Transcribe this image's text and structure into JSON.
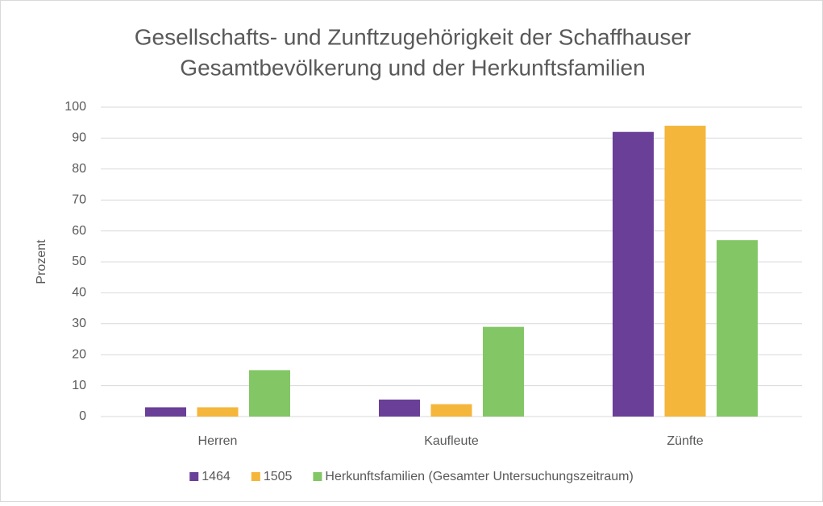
{
  "chart_data": {
    "type": "bar",
    "title": [
      "Gesellschafts- und Zunftzugehörigkeit der Schaffhauser",
      "Gesamtbevölkerung und der Herkunftsfamilien"
    ],
    "y_label": "Prozent",
    "categories": [
      "Herren",
      "Kaufleute",
      "Zünfte"
    ],
    "series": [
      {
        "name": "1464",
        "color": "#6a3f98",
        "values": [
          3,
          5.5,
          92
        ]
      },
      {
        "name": "1505",
        "color": "#f4b63b",
        "values": [
          3,
          4,
          94
        ]
      },
      {
        "name": "Herkunftsfamilien (Gesamter Untersuchungszeitraum)",
        "color": "#83c665",
        "values": [
          15,
          29,
          57
        ]
      }
    ],
    "ylim": [
      0,
      100
    ],
    "yticks": [
      0,
      10,
      20,
      30,
      40,
      50,
      60,
      70,
      80,
      90,
      100
    ],
    "grid": true,
    "legend": "bottom"
  }
}
